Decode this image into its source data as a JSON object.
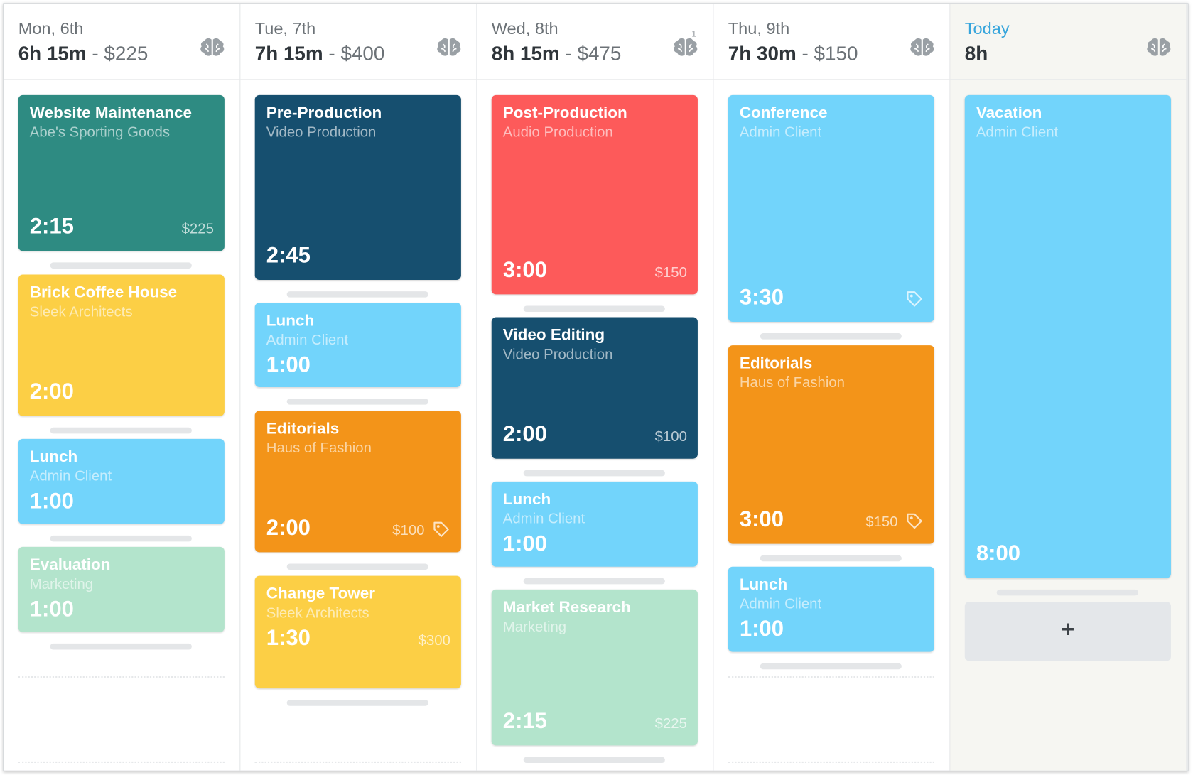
{
  "separator": "-",
  "add_button": "+",
  "columns": [
    {
      "day": "Mon, 6th",
      "total": "6h 15m",
      "earnings": "$225",
      "entries": [
        {
          "title": "Website Maintenance",
          "client": "Abe's Sporting Goods",
          "duration": "2:15",
          "amount": "$225",
          "color": "#2e8b82"
        },
        {
          "title": "Brick Coffee House",
          "client": "Sleek Architects",
          "duration": "2:00",
          "color": "#fccf45"
        },
        {
          "title": "Lunch",
          "client": "Admin Client",
          "duration": "1:00",
          "color": "#72d4fb"
        },
        {
          "title": "Evaluation",
          "client": "Marketing",
          "duration": "1:00",
          "color": "#b3e4cc"
        }
      ]
    },
    {
      "day": "Tue, 7th",
      "total": "7h 15m",
      "earnings": "$400",
      "entries": [
        {
          "title": "Pre-Production",
          "client": "Video Production",
          "duration": "2:45",
          "color": "#164f6f"
        },
        {
          "title": "Lunch",
          "client": "Admin Client",
          "duration": "1:00",
          "color": "#72d4fb"
        },
        {
          "title": "Editorials",
          "client": "Haus of Fashion",
          "duration": "2:00",
          "amount": "$100",
          "tagged": true,
          "color": "#f39419"
        },
        {
          "title": "Change Tower",
          "client": "Sleek Architects",
          "duration": "1:30",
          "amount": "$300",
          "color": "#fccf45"
        }
      ]
    },
    {
      "day": "Wed, 8th",
      "total": "8h 15m",
      "earnings": "$475",
      "badge": "1",
      "entries": [
        {
          "title": "Post-Production",
          "client": "Audio Production",
          "duration": "3:00",
          "amount": "$150",
          "color": "#fd5a5a"
        },
        {
          "title": "Video Editing",
          "client": "Video Production",
          "duration": "2:00",
          "amount": "$100",
          "color": "#164f6f"
        },
        {
          "title": "Lunch",
          "client": "Admin Client",
          "duration": "1:00",
          "color": "#72d4fb"
        },
        {
          "title": "Market Research",
          "client": "Marketing",
          "duration": "2:15",
          "amount": "$225",
          "color": "#b3e4cc"
        }
      ]
    },
    {
      "day": "Thu, 9th",
      "total": "7h 30m",
      "earnings": "$150",
      "entries": [
        {
          "title": "Conference",
          "client": "Admin Client",
          "duration": "3:30",
          "tagged": true,
          "color": "#72d4fb"
        },
        {
          "title": "Editorials",
          "client": "Haus of Fashion",
          "duration": "3:00",
          "amount": "$150",
          "tagged": true,
          "color": "#f39419"
        },
        {
          "title": "Lunch",
          "client": "Admin Client",
          "duration": "1:00",
          "color": "#72d4fb"
        }
      ]
    },
    {
      "day": "Today",
      "total": "8h",
      "today": true,
      "entries": [
        {
          "title": "Vacation",
          "client": "Admin Client",
          "duration": "8:00",
          "color": "#72d4fb"
        }
      ]
    }
  ]
}
